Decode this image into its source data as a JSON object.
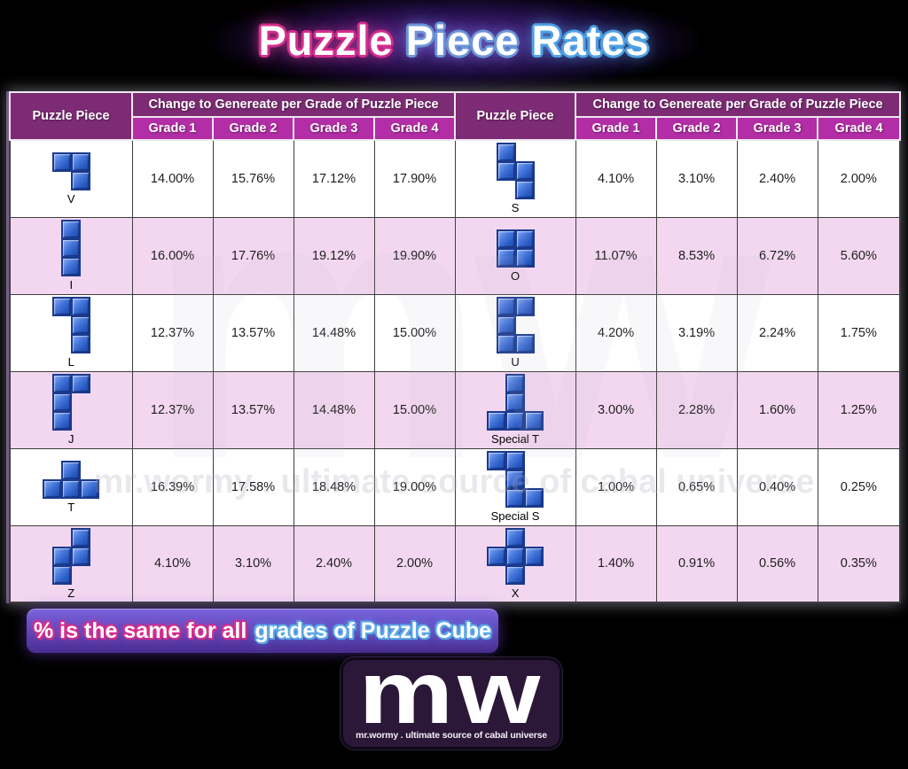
{
  "title": {
    "part1": "Puzzle",
    "part2": "Piece",
    "part3": "Rates"
  },
  "table": {
    "piece_header": "Puzzle Piece",
    "change_header": "Change to Genereate per Grade of Puzzle Piece",
    "grade_headers": [
      "Grade 1",
      "Grade 2",
      "Grade 3",
      "Grade 4"
    ],
    "left_rows": [
      {
        "piece": "V",
        "cells": [
          [
            0,
            0
          ],
          [
            0,
            1
          ],
          [
            1,
            1
          ]
        ],
        "values": [
          "14.00%",
          "15.76%",
          "17.12%",
          "17.90%"
        ]
      },
      {
        "piece": "I",
        "cells": [
          [
            0,
            0
          ],
          [
            1,
            0
          ],
          [
            2,
            0
          ]
        ],
        "values": [
          "16.00%",
          "17.76%",
          "19.12%",
          "19.90%"
        ]
      },
      {
        "piece": "L",
        "cells": [
          [
            0,
            0
          ],
          [
            0,
            1
          ],
          [
            1,
            1
          ],
          [
            2,
            1
          ]
        ],
        "values": [
          "12.37%",
          "13.57%",
          "14.48%",
          "15.00%"
        ]
      },
      {
        "piece": "J",
        "cells": [
          [
            0,
            0
          ],
          [
            0,
            1
          ],
          [
            1,
            0
          ],
          [
            2,
            0
          ]
        ],
        "values": [
          "12.37%",
          "13.57%",
          "14.48%",
          "15.00%"
        ]
      },
      {
        "piece": "T",
        "cells": [
          [
            0,
            1
          ],
          [
            1,
            0
          ],
          [
            1,
            1
          ],
          [
            1,
            2
          ]
        ],
        "values": [
          "16.39%",
          "17.58%",
          "18.48%",
          "19.00%"
        ]
      },
      {
        "piece": "Z",
        "cells": [
          [
            0,
            1
          ],
          [
            1,
            0
          ],
          [
            1,
            1
          ],
          [
            2,
            0
          ]
        ],
        "values": [
          "4.10%",
          "3.10%",
          "2.40%",
          "2.00%"
        ]
      }
    ],
    "right_rows": [
      {
        "piece": "S",
        "cells": [
          [
            0,
            0
          ],
          [
            1,
            0
          ],
          [
            1,
            1
          ],
          [
            2,
            1
          ]
        ],
        "values": [
          "4.10%",
          "3.10%",
          "2.40%",
          "2.00%"
        ]
      },
      {
        "piece": "O",
        "cells": [
          [
            0,
            0
          ],
          [
            0,
            1
          ],
          [
            1,
            0
          ],
          [
            1,
            1
          ]
        ],
        "values": [
          "11.07%",
          "8.53%",
          "6.72%",
          "5.60%"
        ]
      },
      {
        "piece": "U",
        "cells": [
          [
            0,
            0
          ],
          [
            0,
            1
          ],
          [
            1,
            0
          ],
          [
            2,
            0
          ],
          [
            2,
            1
          ]
        ],
        "values": [
          "4.20%",
          "3.19%",
          "2.24%",
          "1.75%"
        ]
      },
      {
        "piece": "Special T",
        "cells": [
          [
            0,
            1
          ],
          [
            1,
            1
          ],
          [
            2,
            0
          ],
          [
            2,
            1
          ],
          [
            2,
            2
          ]
        ],
        "values": [
          "3.00%",
          "2.28%",
          "1.60%",
          "1.25%"
        ]
      },
      {
        "piece": "Special S",
        "cells": [
          [
            0,
            0
          ],
          [
            0,
            1
          ],
          [
            1,
            1
          ],
          [
            2,
            1
          ],
          [
            2,
            2
          ]
        ],
        "values": [
          "1.00%",
          "0.65%",
          "0.40%",
          "0.25%"
        ]
      },
      {
        "piece": "X",
        "cells": [
          [
            0,
            1
          ],
          [
            1,
            0
          ],
          [
            1,
            1
          ],
          [
            1,
            2
          ],
          [
            2,
            1
          ]
        ],
        "values": [
          "1.40%",
          "0.91%",
          "0.56%",
          "0.35%"
        ]
      }
    ]
  },
  "chart_data": {
    "type": "table",
    "title": "Puzzle Piece Rates",
    "columns": [
      "Puzzle Piece",
      "Grade 1",
      "Grade 2",
      "Grade 3",
      "Grade 4"
    ],
    "unit": "%",
    "rows": [
      [
        "V",
        14.0,
        15.76,
        17.12,
        17.9
      ],
      [
        "I",
        16.0,
        17.76,
        19.12,
        19.9
      ],
      [
        "L",
        12.37,
        13.57,
        14.48,
        15.0
      ],
      [
        "J",
        12.37,
        13.57,
        14.48,
        15.0
      ],
      [
        "T",
        16.39,
        17.58,
        18.48,
        19.0
      ],
      [
        "Z",
        4.1,
        3.1,
        2.4,
        2.0
      ],
      [
        "S",
        4.1,
        3.1,
        2.4,
        2.0
      ],
      [
        "O",
        11.07,
        8.53,
        6.72,
        5.6
      ],
      [
        "U",
        4.2,
        3.19,
        2.24,
        1.75
      ],
      [
        "Special T",
        3.0,
        2.28,
        1.6,
        1.25
      ],
      [
        "Special S",
        1.0,
        0.65,
        0.4,
        0.25
      ],
      [
        "X",
        1.4,
        0.91,
        0.56,
        0.35
      ]
    ]
  },
  "footnote": {
    "part1": "% is the same for all",
    "part2": "grades of Puzzle Cube"
  },
  "logo": {
    "text": "mw",
    "tagline": "mr.wormy . ultimate source of cabal universe"
  },
  "watermark": {
    "big": "mw",
    "line": "mr.wormy . ultimate source of cabal universe"
  },
  "colors": {
    "header_dark_magenta": "#7D2B74",
    "header_grade_magenta": "#B32DA6",
    "row_alt_pink": "#F3D7F0",
    "row_white": "#FFFFFF",
    "piece_block_blue": "#2E62C8",
    "title_pink": "#D42C8C",
    "title_blue": "#4FA0E4",
    "footnote_purple": "#5F43B8",
    "logo_bg_purple": "#2B1737"
  }
}
